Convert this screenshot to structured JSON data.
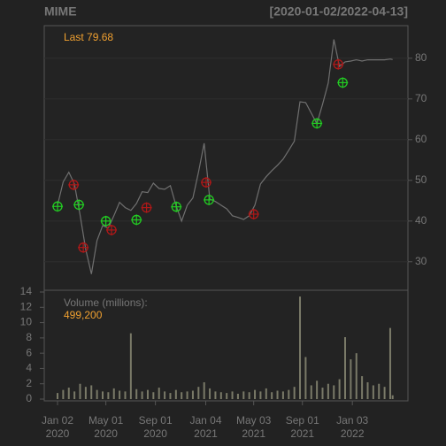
{
  "chart_data": [
    {
      "type": "line",
      "title": "MIME",
      "subtitle": "[2020-01-02/2022-04-13]",
      "annotation": "Last 79.68",
      "color": "#707070",
      "grid": true,
      "xlim": [
        "2019-11-30",
        "2022-05-21"
      ],
      "ylim": [
        23,
        88
      ],
      "yticks": [
        30,
        40,
        50,
        60,
        70,
        80
      ],
      "x": [
        "2020-01-02",
        "2020-01-16",
        "2020-01-30",
        "2020-02-13",
        "2020-02-27",
        "2020-03-12",
        "2020-03-26",
        "2020-04-09",
        "2020-04-23",
        "2020-05-07",
        "2020-05-21",
        "2020-06-04",
        "2020-06-18",
        "2020-07-02",
        "2020-07-16",
        "2020-07-30",
        "2020-08-13",
        "2020-08-27",
        "2020-09-10",
        "2020-09-24",
        "2020-10-08",
        "2020-10-22",
        "2020-11-05",
        "2020-11-19",
        "2020-12-03",
        "2020-12-17",
        "2020-12-31",
        "2021-01-14",
        "2021-01-28",
        "2021-02-11",
        "2021-02-25",
        "2021-03-11",
        "2021-03-25",
        "2021-04-08",
        "2021-04-22",
        "2021-05-06",
        "2021-05-20",
        "2021-06-03",
        "2021-06-17",
        "2021-07-01",
        "2021-07-15",
        "2021-07-29",
        "2021-08-12",
        "2021-08-26",
        "2021-09-09",
        "2021-09-23",
        "2021-10-07",
        "2021-10-21",
        "2021-11-04",
        "2021-11-18",
        "2021-12-02",
        "2021-12-16",
        "2021-12-30",
        "2022-01-13",
        "2022-01-27",
        "2022-02-10",
        "2022-02-24",
        "2022-03-10",
        "2022-03-24",
        "2022-04-07",
        "2022-04-13"
      ],
      "values": [
        43.9,
        49.6,
        52.0,
        49.1,
        41.5,
        33.0,
        27.0,
        35.2,
        38.9,
        38.3,
        41.3,
        44.6,
        43.3,
        42.6,
        44.3,
        47.2,
        47.0,
        49.3,
        48.0,
        47.8,
        48.7,
        43.9,
        40.0,
        43.9,
        45.7,
        52.0,
        59.1,
        45.4,
        44.8,
        43.9,
        43.0,
        41.3,
        40.9,
        40.4,
        41.3,
        43.9,
        49.1,
        50.9,
        52.4,
        53.7,
        55.2,
        57.4,
        59.6,
        69.3,
        69.1,
        66.5,
        63.9,
        68.7,
        73.9,
        84.6,
        78.0,
        79.1,
        79.3,
        79.6,
        79.3,
        79.6,
        79.6,
        79.6,
        79.6,
        79.8,
        79.68
      ],
      "markers": [
        {
          "color": "#22cc22",
          "x": [
            "2020-01-02",
            "2020-02-24",
            "2020-05-01",
            "2020-07-16",
            "2020-10-23",
            "2021-01-12",
            "2021-10-07",
            "2021-12-10"
          ],
          "values": [
            43.6,
            44.0,
            40.0,
            40.3,
            43.5,
            45.2,
            64.0,
            74.0
          ]
        },
        {
          "color": "#b01818",
          "x": [
            "2020-02-11",
            "2020-03-06",
            "2020-05-15",
            "2020-08-10",
            "2021-01-05",
            "2021-05-03",
            "2021-11-29"
          ],
          "values": [
            48.9,
            33.5,
            37.8,
            43.3,
            49.5,
            41.7,
            78.5
          ]
        }
      ]
    },
    {
      "type": "bar",
      "label": "Volume (millions):",
      "annotation": "499,200",
      "color": "#7a7a68",
      "xlim": [
        "2019-11-30",
        "2022-05-21"
      ],
      "ylim": [
        -0.23,
        14.23
      ],
      "yticks": [
        0,
        2,
        4,
        6,
        8,
        10,
        12,
        14
      ],
      "xticks": [
        {
          "value": "2020-01-02",
          "label": "Jan 02\n2020"
        },
        {
          "value": "2020-05-01",
          "label": "May 01\n2020"
        },
        {
          "value": "2020-09-01",
          "label": "Sep 01\n2020"
        },
        {
          "value": "2021-01-04",
          "label": "Jan 04\n2021"
        },
        {
          "value": "2021-05-03",
          "label": "May 03\n2021"
        },
        {
          "value": "2021-09-01",
          "label": "Sep 01\n2021"
        },
        {
          "value": "2022-01-03",
          "label": "Jan 03\n2022"
        }
      ],
      "x": [
        "2020-01-02",
        "2020-01-16",
        "2020-01-30",
        "2020-02-13",
        "2020-02-27",
        "2020-03-12",
        "2020-03-26",
        "2020-04-09",
        "2020-04-23",
        "2020-05-07",
        "2020-05-21",
        "2020-06-04",
        "2020-06-18",
        "2020-07-02",
        "2020-07-16",
        "2020-07-30",
        "2020-08-13",
        "2020-08-27",
        "2020-09-10",
        "2020-09-24",
        "2020-10-08",
        "2020-10-22",
        "2020-11-05",
        "2020-11-19",
        "2020-12-03",
        "2020-12-17",
        "2020-12-31",
        "2021-01-14",
        "2021-01-28",
        "2021-02-11",
        "2021-02-25",
        "2021-03-11",
        "2021-03-25",
        "2021-04-08",
        "2021-04-22",
        "2021-05-06",
        "2021-05-20",
        "2021-06-03",
        "2021-06-17",
        "2021-07-01",
        "2021-07-15",
        "2021-07-29",
        "2021-08-12",
        "2021-08-26",
        "2021-09-09",
        "2021-09-23",
        "2021-10-07",
        "2021-10-21",
        "2021-11-04",
        "2021-11-18",
        "2021-12-02",
        "2021-12-16",
        "2021-12-30",
        "2022-01-13",
        "2022-01-27",
        "2022-02-10",
        "2022-02-24",
        "2022-03-10",
        "2022-03-24",
        "2022-04-07",
        "2022-04-13"
      ],
      "values": [
        0.8,
        1.2,
        1.5,
        1.0,
        2.0,
        1.6,
        1.8,
        1.2,
        1.0,
        0.9,
        1.4,
        1.1,
        1.0,
        8.6,
        1.3,
        1.0,
        1.2,
        0.9,
        1.5,
        1.0,
        0.8,
        1.2,
        0.9,
        1.0,
        1.1,
        1.6,
        2.2,
        1.4,
        1.0,
        0.9,
        0.8,
        1.0,
        0.7,
        1.0,
        0.9,
        1.2,
        1.0,
        1.4,
        0.9,
        1.1,
        1.0,
        1.2,
        1.6,
        13.4,
        5.5,
        1.8,
        2.4,
        1.5,
        2.0,
        1.8,
        2.6,
        8.1,
        5.2,
        6.0,
        3.0,
        2.2,
        1.8,
        2.0,
        1.6,
        9.3,
        0.4992
      ]
    }
  ]
}
